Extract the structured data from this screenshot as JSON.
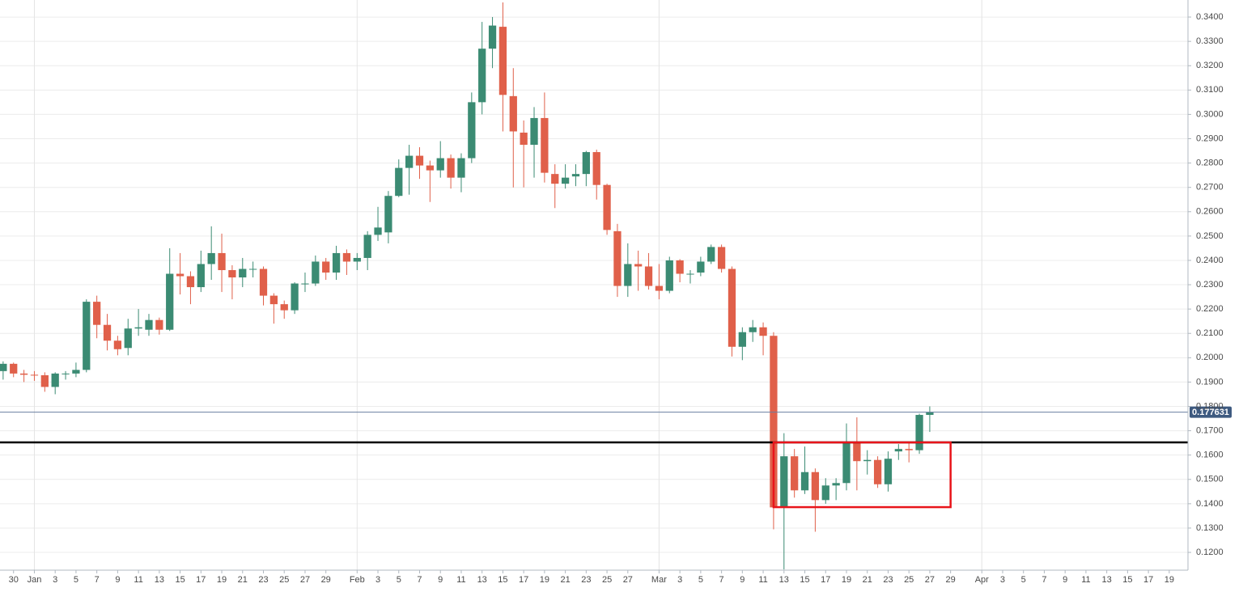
{
  "chart_data": {
    "type": "candlestick",
    "up_color": "#3b8b73",
    "down_color": "#e0604a",
    "categories": [
      "Dec 29",
      "Dec 30",
      "Dec 31",
      "Jan 1",
      "Jan 2",
      "Jan 3",
      "Jan 4",
      "Jan 5",
      "Jan 6",
      "Jan 7",
      "Jan 8",
      "Jan 9",
      "Jan 10",
      "Jan 11",
      "Jan 12",
      "Jan 13",
      "Jan 14",
      "Jan 15",
      "Jan 16",
      "Jan 17",
      "Jan 18",
      "Jan 19",
      "Jan 20",
      "Jan 21",
      "Jan 22",
      "Jan 23",
      "Jan 24",
      "Jan 25",
      "Jan 26",
      "Jan 27",
      "Jan 28",
      "Jan 29",
      "Jan 30",
      "Jan 31",
      "Feb 1",
      "Feb 2",
      "Feb 3",
      "Feb 4",
      "Feb 5",
      "Feb 6",
      "Feb 7",
      "Feb 8",
      "Feb 9",
      "Feb 10",
      "Feb 11",
      "Feb 12",
      "Feb 13",
      "Feb 14",
      "Feb 15",
      "Feb 16",
      "Feb 17",
      "Feb 18",
      "Feb 19",
      "Feb 20",
      "Feb 21",
      "Feb 22",
      "Feb 23",
      "Feb 24",
      "Feb 25",
      "Feb 26",
      "Feb 27",
      "Feb 28",
      "Feb 29",
      "Mar 1",
      "Mar 2",
      "Mar 3",
      "Mar 4",
      "Mar 5",
      "Mar 6",
      "Mar 7",
      "Mar 8",
      "Mar 9",
      "Mar 10",
      "Mar 11",
      "Mar 12",
      "Mar 13",
      "Mar 14",
      "Mar 15",
      "Mar 16",
      "Mar 17",
      "Mar 18",
      "Mar 19",
      "Mar 20",
      "Mar 21",
      "Mar 22",
      "Mar 23",
      "Mar 24",
      "Mar 25",
      "Mar 26",
      "Mar 27"
    ],
    "open": [
      0.1945,
      0.1975,
      0.1935,
      0.193,
      0.1928,
      0.188,
      0.1935,
      0.1935,
      0.195,
      0.223,
      0.2135,
      0.207,
      0.204,
      0.212,
      0.2115,
      0.2155,
      0.2115,
      0.2345,
      0.2335,
      0.229,
      0.2385,
      0.243,
      0.236,
      0.233,
      0.2365,
      0.2365,
      0.2255,
      0.222,
      0.2195,
      0.2305,
      0.2305,
      0.2395,
      0.235,
      0.243,
      0.2395,
      0.241,
      0.2505,
      0.2515,
      0.2665,
      0.278,
      0.283,
      0.279,
      0.277,
      0.282,
      0.274,
      0.282,
      0.305,
      0.327,
      0.336,
      0.3075,
      0.2925,
      0.2875,
      0.2985,
      0.2755,
      0.2715,
      0.2745,
      0.2755,
      0.2845,
      0.271,
      0.252,
      0.2295,
      0.2385,
      0.2375,
      0.2295,
      0.2275,
      0.24,
      0.2345,
      0.235,
      0.2395,
      0.2455,
      0.2365,
      0.2045,
      0.2105,
      0.2125,
      0.209,
      0.1385,
      0.1595,
      0.1455,
      0.153,
      0.1415,
      0.1475,
      0.1485,
      0.165,
      0.1575,
      0.158,
      0.148,
      0.1615,
      0.1625,
      0.162,
      0.1765
    ],
    "high": [
      0.1985,
      0.198,
      0.195,
      0.1945,
      0.194,
      0.194,
      0.1945,
      0.198,
      0.224,
      0.2255,
      0.218,
      0.209,
      0.216,
      0.22,
      0.218,
      0.2165,
      0.245,
      0.243,
      0.2355,
      0.244,
      0.254,
      0.251,
      0.238,
      0.241,
      0.2395,
      0.2375,
      0.2265,
      0.2235,
      0.231,
      0.235,
      0.242,
      0.241,
      0.246,
      0.2445,
      0.243,
      0.252,
      0.262,
      0.2685,
      0.2815,
      0.2875,
      0.2865,
      0.281,
      0.289,
      0.2835,
      0.284,
      0.309,
      0.338,
      0.34,
      0.346,
      0.319,
      0.2975,
      0.303,
      0.309,
      0.2795,
      0.2795,
      0.2795,
      0.285,
      0.2855,
      0.2715,
      0.255,
      0.247,
      0.244,
      0.243,
      0.2385,
      0.2415,
      0.2405,
      0.236,
      0.2415,
      0.2465,
      0.2465,
      0.2375,
      0.2125,
      0.2155,
      0.2145,
      0.2105,
      0.169,
      0.1625,
      0.1635,
      0.1545,
      0.1505,
      0.1505,
      0.173,
      0.1755,
      0.162,
      0.1595,
      0.1615,
      0.1645,
      0.165,
      0.177,
      0.18
    ],
    "low": [
      0.191,
      0.192,
      0.19,
      0.1905,
      0.186,
      0.185,
      0.191,
      0.192,
      0.194,
      0.208,
      0.203,
      0.201,
      0.201,
      0.209,
      0.209,
      0.2095,
      0.211,
      0.226,
      0.222,
      0.227,
      0.232,
      0.227,
      0.224,
      0.229,
      0.233,
      0.2215,
      0.214,
      0.216,
      0.218,
      0.227,
      0.2295,
      0.232,
      0.232,
      0.234,
      0.236,
      0.236,
      0.248,
      0.247,
      0.266,
      0.267,
      0.2735,
      0.264,
      0.274,
      0.2695,
      0.268,
      0.28,
      0.3,
      0.319,
      0.293,
      0.27,
      0.27,
      0.274,
      0.272,
      0.2615,
      0.2695,
      0.2705,
      0.2705,
      0.265,
      0.2505,
      0.225,
      0.225,
      0.2275,
      0.228,
      0.224,
      0.2265,
      0.231,
      0.2305,
      0.2335,
      0.2385,
      0.235,
      0.2005,
      0.199,
      0.2065,
      0.201,
      0.1295,
      0.113,
      0.1425,
      0.144,
      0.1285,
      0.14,
      0.1415,
      0.1455,
      0.1455,
      0.152,
      0.1465,
      0.145,
      0.158,
      0.157,
      0.1605,
      0.1695
    ],
    "close": [
      0.1975,
      0.1935,
      0.193,
      0.1928,
      0.188,
      0.1935,
      0.1935,
      0.195,
      0.223,
      0.2135,
      0.207,
      0.2035,
      0.212,
      0.2125,
      0.2155,
      0.2115,
      0.2345,
      0.2335,
      0.229,
      0.2385,
      0.243,
      0.236,
      0.233,
      0.2365,
      0.2365,
      0.2255,
      0.222,
      0.2195,
      0.2305,
      0.2305,
      0.2395,
      0.235,
      0.243,
      0.2395,
      0.241,
      0.2505,
      0.2535,
      0.2665,
      0.278,
      0.283,
      0.279,
      0.277,
      0.282,
      0.274,
      0.282,
      0.305,
      0.327,
      0.3365,
      0.308,
      0.293,
      0.2875,
      0.2985,
      0.276,
      0.2715,
      0.274,
      0.2755,
      0.2845,
      0.271,
      0.2525,
      0.2295,
      0.2385,
      0.2375,
      0.2295,
      0.2275,
      0.24,
      0.2345,
      0.2345,
      0.2395,
      0.2455,
      0.2365,
      0.2045,
      0.2105,
      0.2125,
      0.209,
      0.1385,
      0.1595,
      0.1455,
      0.153,
      0.1415,
      0.1475,
      0.1485,
      0.165,
      0.1575,
      0.158,
      0.148,
      0.1585,
      0.1625,
      0.162,
      0.1765,
      0.1776
    ],
    "xlim": [
      -0.3,
      113.8
    ],
    "xticks": [
      {
        "value": 1,
        "label": "30"
      },
      {
        "value": 3,
        "label": "Jan"
      },
      {
        "value": 5,
        "label": "3"
      },
      {
        "value": 7,
        "label": "5"
      },
      {
        "value": 9,
        "label": "7"
      },
      {
        "value": 11,
        "label": "9"
      },
      {
        "value": 13,
        "label": "11"
      },
      {
        "value": 15,
        "label": "13"
      },
      {
        "value": 17,
        "label": "15"
      },
      {
        "value": 19,
        "label": "17"
      },
      {
        "value": 21,
        "label": "19"
      },
      {
        "value": 23,
        "label": "21"
      },
      {
        "value": 25,
        "label": "23"
      },
      {
        "value": 27,
        "label": "25"
      },
      {
        "value": 29,
        "label": "27"
      },
      {
        "value": 31,
        "label": "29"
      },
      {
        "value": 34,
        "label": "Feb"
      },
      {
        "value": 36,
        "label": "3"
      },
      {
        "value": 38,
        "label": "5"
      },
      {
        "value": 40,
        "label": "7"
      },
      {
        "value": 42,
        "label": "9"
      },
      {
        "value": 44,
        "label": "11"
      },
      {
        "value": 46,
        "label": "13"
      },
      {
        "value": 48,
        "label": "15"
      },
      {
        "value": 50,
        "label": "17"
      },
      {
        "value": 52,
        "label": "19"
      },
      {
        "value": 54,
        "label": "21"
      },
      {
        "value": 56,
        "label": "23"
      },
      {
        "value": 58,
        "label": "25"
      },
      {
        "value": 60,
        "label": "27"
      },
      {
        "value": 63,
        "label": "Mar"
      },
      {
        "value": 65,
        "label": "3"
      },
      {
        "value": 67,
        "label": "5"
      },
      {
        "value": 69,
        "label": "7"
      },
      {
        "value": 71,
        "label": "9"
      },
      {
        "value": 73,
        "label": "11"
      },
      {
        "value": 75,
        "label": "13"
      },
      {
        "value": 77,
        "label": "15"
      },
      {
        "value": 79,
        "label": "17"
      },
      {
        "value": 81,
        "label": "19"
      },
      {
        "value": 83,
        "label": "21"
      },
      {
        "value": 85,
        "label": "23"
      },
      {
        "value": 87,
        "label": "25"
      },
      {
        "value": 89,
        "label": "27"
      },
      {
        "value": 91,
        "label": "29"
      },
      {
        "value": 94,
        "label": "Apr"
      },
      {
        "value": 96,
        "label": "3"
      },
      {
        "value": 98,
        "label": "5"
      },
      {
        "value": 100,
        "label": "7"
      },
      {
        "value": 102,
        "label": "9"
      },
      {
        "value": 104,
        "label": "11"
      },
      {
        "value": 106,
        "label": "13"
      },
      {
        "value": 108,
        "label": "15"
      },
      {
        "value": 110,
        "label": "17"
      },
      {
        "value": 112,
        "label": "19"
      }
    ],
    "ylim": [
      0.1127,
      0.347
    ],
    "yticks": [
      {
        "value": 0.12,
        "label": "0.1200"
      },
      {
        "value": 0.13,
        "label": "0.1300"
      },
      {
        "value": 0.14,
        "label": "0.1400"
      },
      {
        "value": 0.15,
        "label": "0.1500"
      },
      {
        "value": 0.16,
        "label": "0.1600"
      },
      {
        "value": 0.17,
        "label": "0.1700"
      },
      {
        "value": 0.18,
        "label": "0.1800"
      },
      {
        "value": 0.19,
        "label": "0.1900"
      },
      {
        "value": 0.2,
        "label": "0.2000"
      },
      {
        "value": 0.21,
        "label": "0.2100"
      },
      {
        "value": 0.22,
        "label": "0.2200"
      },
      {
        "value": 0.23,
        "label": "0.2300"
      },
      {
        "value": 0.24,
        "label": "0.2400"
      },
      {
        "value": 0.25,
        "label": "0.2500"
      },
      {
        "value": 0.26,
        "label": "0.2600"
      },
      {
        "value": 0.27,
        "label": "0.2700"
      },
      {
        "value": 0.28,
        "label": "0.2800"
      },
      {
        "value": 0.29,
        "label": "0.2900"
      },
      {
        "value": 0.3,
        "label": "0.3000"
      },
      {
        "value": 0.31,
        "label": "0.3100"
      },
      {
        "value": 0.32,
        "label": "0.3200"
      },
      {
        "value": 0.33,
        "label": "0.3300"
      },
      {
        "value": 0.34,
        "label": "0.3400"
      }
    ],
    "grid": true,
    "last_price": {
      "value": 0.177631,
      "label": "0.177631",
      "color": "#6a7fa0"
    },
    "level_line": {
      "value": 0.1652,
      "color": "#000000"
    },
    "range_box": {
      "y": [
        0.1386,
        0.1652
      ],
      "x": [
        74,
        91
      ],
      "color": "#e8141a"
    }
  }
}
